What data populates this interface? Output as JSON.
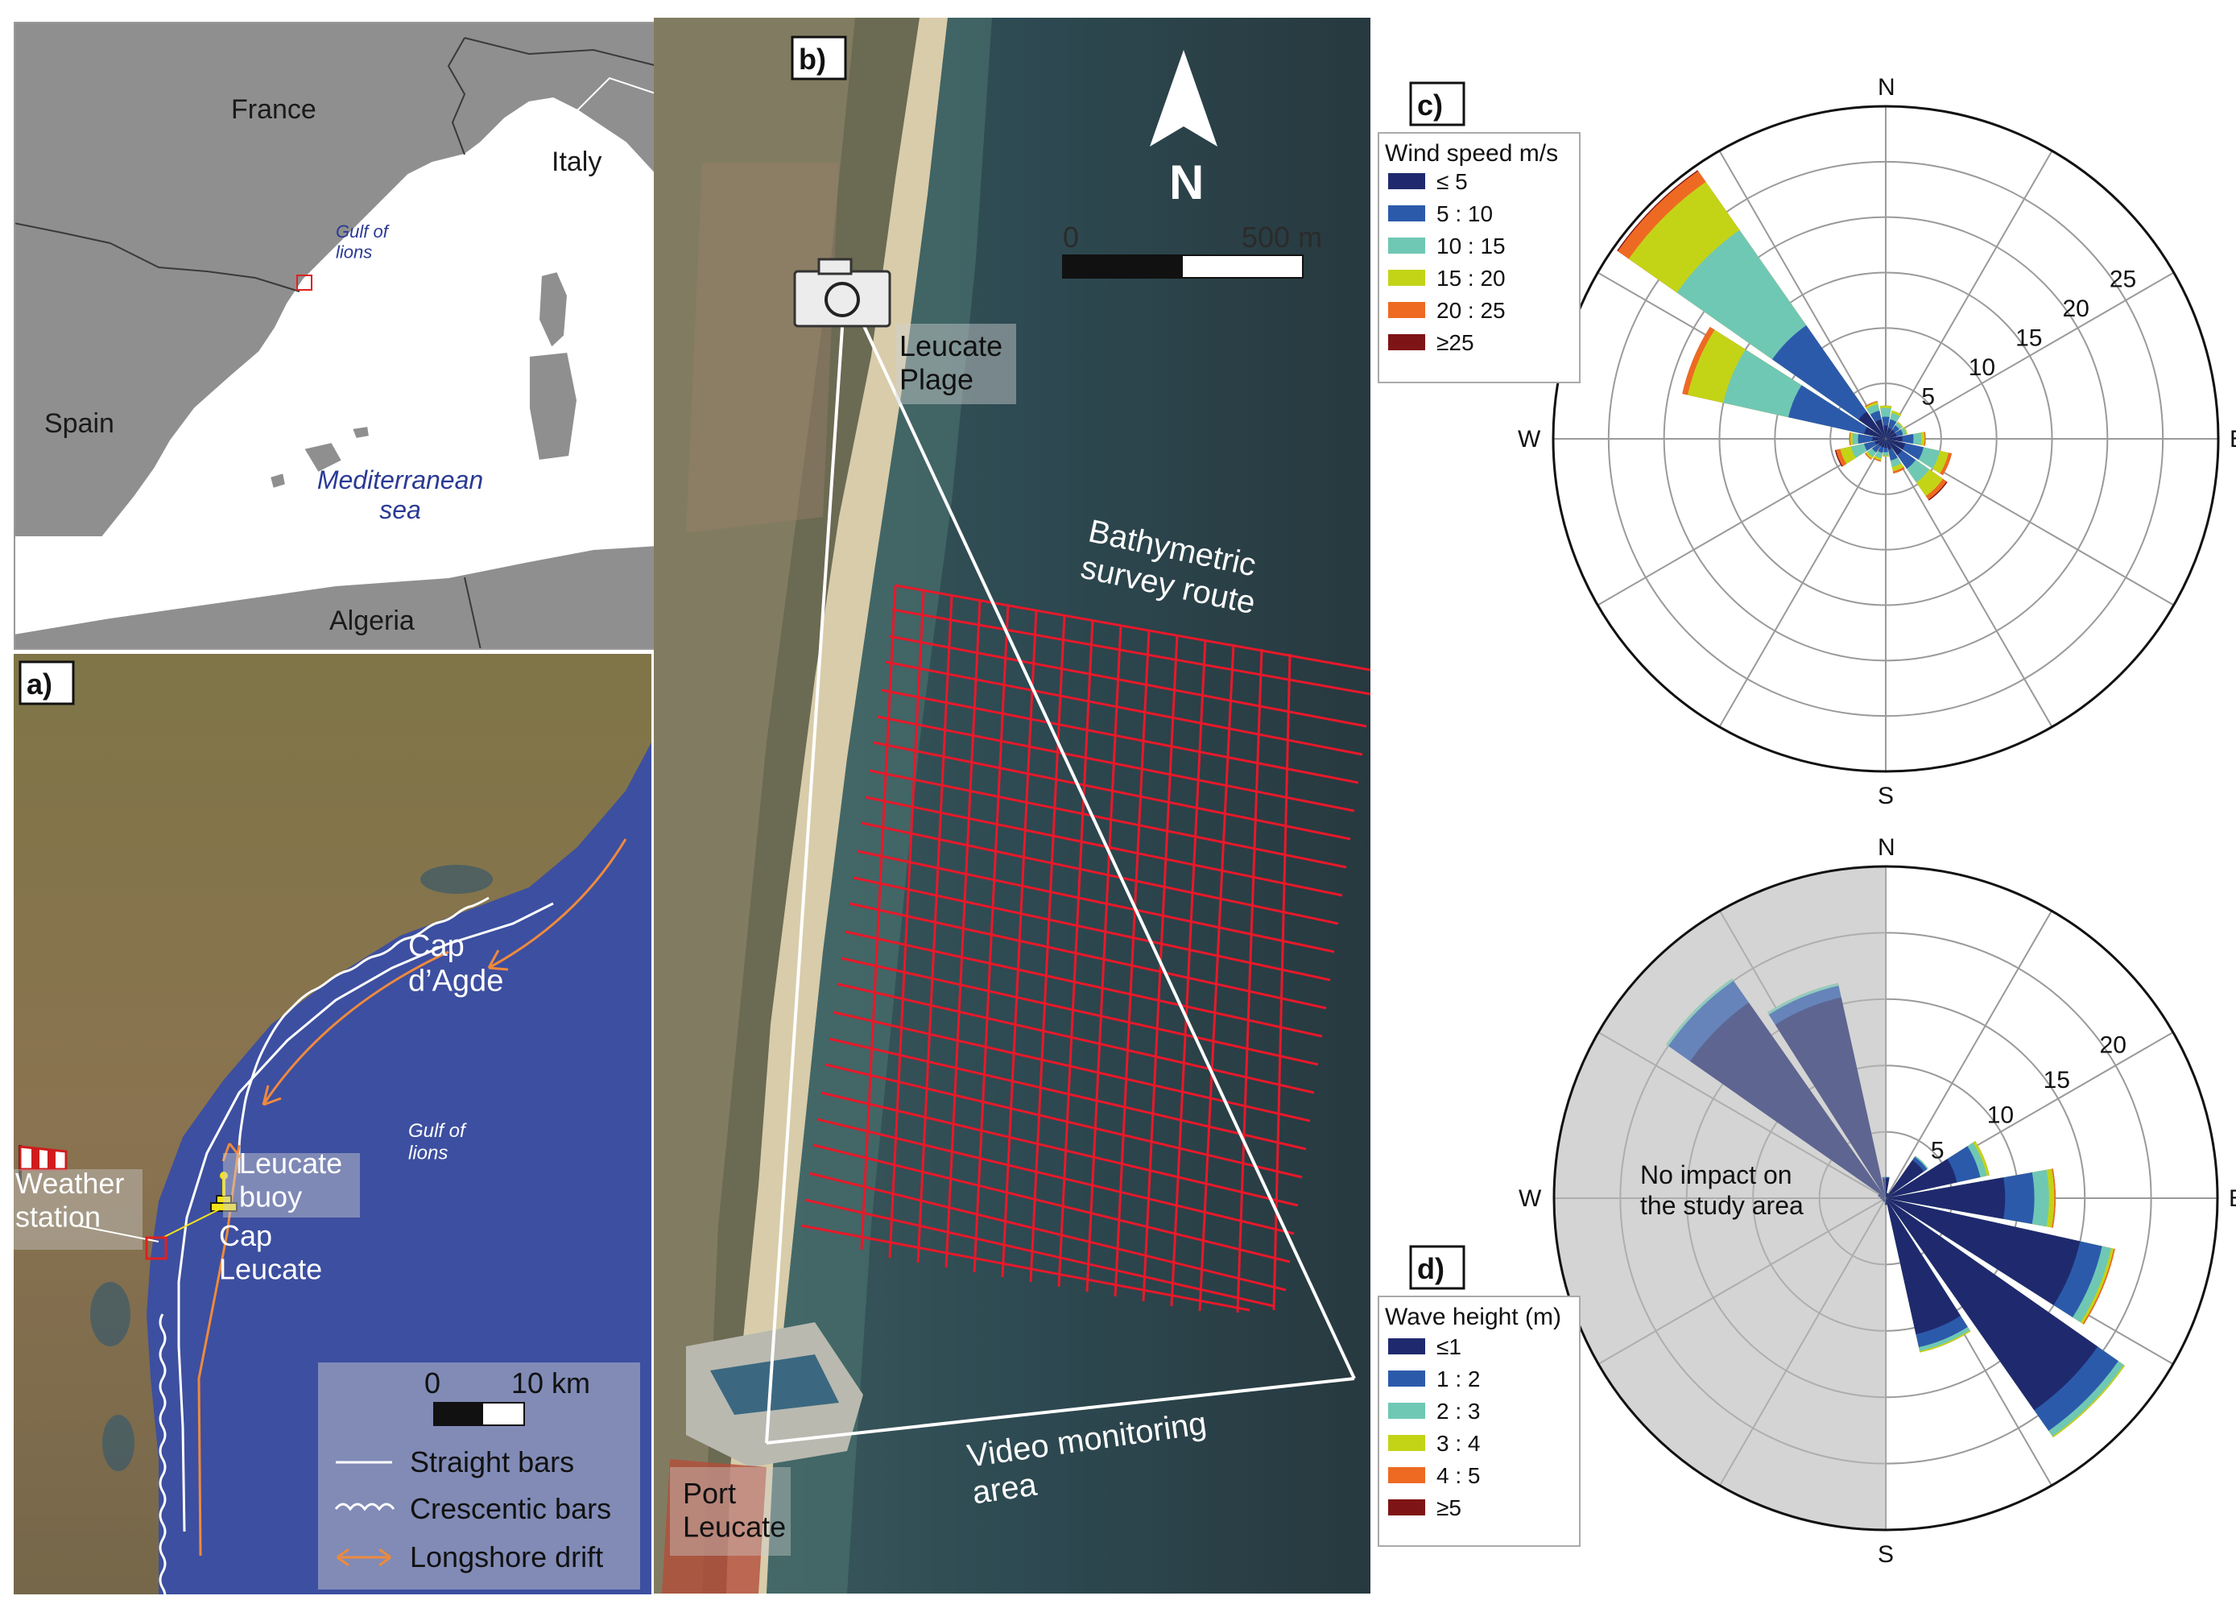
{
  "inset": {
    "labels": {
      "france": "France",
      "italy": "Italy",
      "spain": "Spain",
      "algeria": "Algeria",
      "gulf": "Gulf of\nlions",
      "med": "Mediterranean\nsea"
    }
  },
  "panel_a": {
    "tag": "a)",
    "cap_agde": "Cap\nd’Agde",
    "gulf": "Gulf of\nlions",
    "buoy": "Leucate\nbuoy",
    "weather": "Weather\nstation",
    "cap_leucate": "Cap\nLeucate",
    "scale_0": "0",
    "scale_10": "10 km",
    "legend": {
      "straight": "Straight bars",
      "crescentic": "Crescentic bars",
      "drift": "Longshore drift"
    },
    "colors": {
      "sea": "#3d4fa0",
      "drift": "#ef8a3c",
      "bars": "#ffffff"
    }
  },
  "panel_b": {
    "tag": "b)",
    "north": "N",
    "scale_0": "0",
    "scale_500": "500 m",
    "leucate_plage": "Leucate\nPlage",
    "bathy": "Bathymetric\nsurvey route",
    "video": "Video monitoring\narea",
    "port": "Port\nLeucate",
    "colors": {
      "grid": "#e8182a",
      "sea": "#2b4048"
    }
  },
  "panel_c": {
    "tag": "c)",
    "legend_title": "Wind speed m/s",
    "bins": [
      "≤ 5",
      "5 : 10",
      "10 : 15",
      "15 : 20",
      "20 : 25",
      "≥25"
    ],
    "colors": [
      "#1f2a6e",
      "#2c5aab",
      "#6fc8b4",
      "#c3d417",
      "#ee6a22",
      "#7f1416"
    ],
    "compass": {
      "n": "N",
      "s": "S",
      "e": "E",
      "w": "W"
    },
    "ring_labels": [
      "5",
      "10",
      "15",
      "20",
      "25"
    ]
  },
  "panel_d": {
    "tag": "d)",
    "legend_title": "Wave height (m)",
    "bins": [
      "≤1",
      "1 : 2",
      "2 : 3",
      "3 : 4",
      "4 : 5",
      "≥5"
    ],
    "colors": [
      "#1f2a6e",
      "#2c5aab",
      "#6fc8b4",
      "#c3d417",
      "#ee6a22",
      "#7f1416"
    ],
    "compass": {
      "n": "N",
      "s": "S",
      "e": "E",
      "w": "W"
    },
    "ring_labels": [
      "5",
      "10",
      "15",
      "20"
    ],
    "no_impact": "No impact on\nthe study area"
  },
  "chart_data": [
    {
      "type": "wind_rose",
      "title": "Wind speed m/s",
      "rmax": 30,
      "ring_ticks": [
        5,
        10,
        15,
        20,
        25
      ],
      "bins": [
        "≤ 5",
        "5 : 10",
        "10 : 15",
        "15 : 20",
        "20 : 25",
        "≥25"
      ],
      "directions_deg": [
        0,
        22.5,
        45,
        67.5,
        90,
        112.5,
        135,
        157.5,
        180,
        202.5,
        225,
        247.5,
        270,
        292.5,
        315,
        337.5
      ],
      "cumulative": [
        [
          1.2,
          2.0,
          2.8,
          3.0,
          3.0,
          3.0
        ],
        [
          1.0,
          1.8,
          2.4,
          2.6,
          2.6,
          2.6
        ],
        [
          1.0,
          1.5,
          1.8,
          1.9,
          1.9,
          1.9
        ],
        [
          1.0,
          1.6,
          1.9,
          2.0,
          2.0,
          2.0
        ],
        [
          1.5,
          2.5,
          3.2,
          3.5,
          3.6,
          3.6
        ],
        [
          1.8,
          3.5,
          5.0,
          5.8,
          6.1,
          6.1
        ],
        [
          1.8,
          3.3,
          4.8,
          6.3,
          6.7,
          6.8
        ],
        [
          1.0,
          2.0,
          2.6,
          3.0,
          3.2,
          3.2
        ],
        [
          0.8,
          1.2,
          1.5,
          1.6,
          1.6,
          1.6
        ],
        [
          0.8,
          1.3,
          1.8,
          2.0,
          2.1,
          2.1
        ],
        [
          0.8,
          1.5,
          2.0,
          2.2,
          2.3,
          2.3
        ],
        [
          1.0,
          2.0,
          3.2,
          4.2,
          4.6,
          4.7
        ],
        [
          1.2,
          2.5,
          3.0,
          3.2,
          3.3,
          3.3
        ],
        [
          2.0,
          9.0,
          15.0,
          18.3,
          18.8,
          18.8
        ],
        [
          3.0,
          12.5,
          23.0,
          28.3,
          29.5,
          29.6
        ],
        [
          1.8,
          2.6,
          3.2,
          3.4,
          3.5,
          3.5
        ]
      ]
    },
    {
      "type": "wave_rose",
      "title": "Wave height (m)",
      "rmax": 25,
      "ring_ticks": [
        5,
        10,
        15,
        20
      ],
      "bins": [
        "≤1",
        "1 : 2",
        "2 : 3",
        "3 : 4",
        "4 : 5",
        "≥5"
      ],
      "directions_deg": [
        0,
        22.5,
        45,
        67.5,
        90,
        112.5,
        135,
        157.5,
        180,
        202.5,
        225,
        247.5,
        270,
        292.5,
        315,
        337.5
      ],
      "cumulative": [
        [
          1.5,
          1.6,
          1.6,
          1.6,
          1.6,
          1.6
        ],
        [
          0.4,
          0.4,
          0.4,
          0.4,
          0.4,
          0.4
        ],
        [
          3.5,
          3.8,
          3.9,
          3.9,
          3.9,
          3.9
        ],
        [
          5.5,
          7.3,
          7.8,
          8.0,
          8.0,
          8.0
        ],
        [
          9.0,
          11.2,
          12.3,
          12.7,
          12.8,
          12.8
        ],
        [
          15.0,
          16.7,
          17.4,
          17.6,
          17.7,
          17.7
        ],
        [
          19.5,
          21.4,
          21.9,
          22.0,
          22.0,
          22.0
        ],
        [
          10.5,
          11.5,
          11.8,
          11.9,
          11.9,
          11.9
        ],
        [
          0.5,
          0.5,
          0.5,
          0.5,
          0.5,
          0.5
        ],
        [
          0.3,
          0.3,
          0.3,
          0.3,
          0.3,
          0.3
        ],
        [
          0.3,
          0.3,
          0.3,
          0.3,
          0.3,
          0.3
        ],
        [
          0.3,
          0.3,
          0.3,
          0.3,
          0.3,
          0.3
        ],
        [
          0.4,
          0.4,
          0.4,
          0.4,
          0.4,
          0.4
        ],
        [
          0.6,
          0.6,
          0.6,
          0.6,
          0.6,
          0.6
        ],
        [
          18.0,
          20.0,
          20.2,
          20.2,
          20.2,
          20.2
        ],
        [
          15.5,
          16.4,
          16.6,
          16.6,
          16.6,
          16.6
        ]
      ]
    }
  ]
}
